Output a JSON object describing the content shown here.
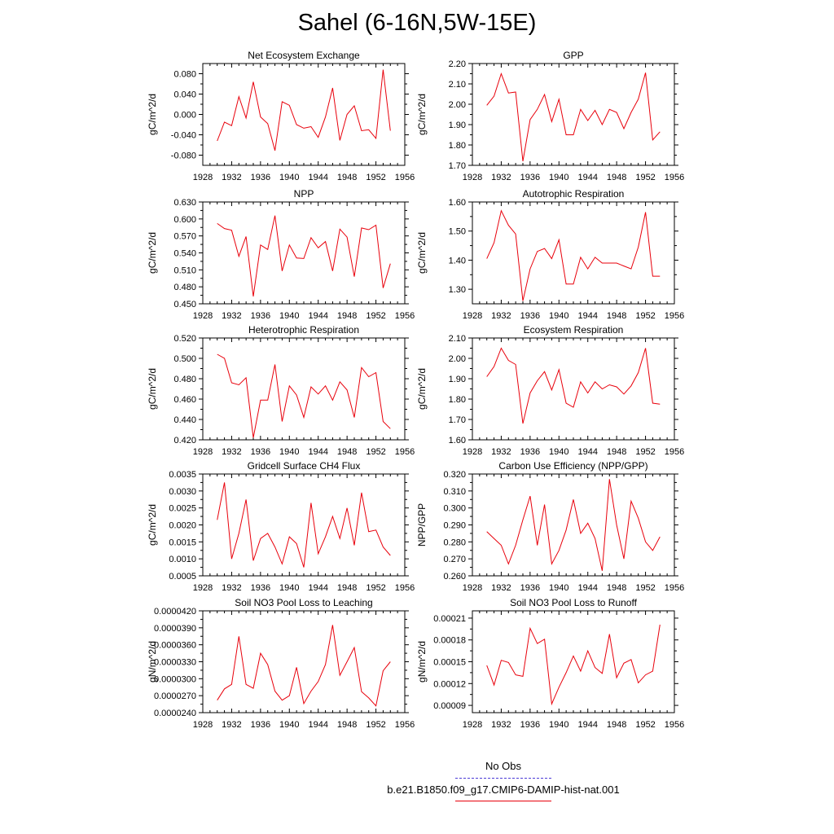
{
  "figure": {
    "title": "Sahel (6-16N,5W-15E)",
    "line_color": "#e8000b",
    "legend": [
      {
        "label": "No Obs",
        "color": "#4b3bd6",
        "style": "dashed"
      },
      {
        "label": "b.e21.B1850.f09_g17.CMIP6-DAMIP-hist-nat.001",
        "color": "#e8000b",
        "style": "solid"
      }
    ]
  },
  "chart_data": [
    {
      "type": "line",
      "title": "Net Ecosystem Exchange",
      "ylabel": "gC/m^2/d",
      "xlim": [
        1928,
        1956
      ],
      "xticks": [
        "1928",
        "1932",
        "1936",
        "1940",
        "1944",
        "1948",
        "1952",
        "1956"
      ],
      "ylim": [
        -0.1,
        0.1
      ],
      "yticks": [
        "-0.080",
        "-0.040",
        "0.000",
        "0.040",
        "0.080"
      ],
      "ytick_values": [
        -0.08,
        -0.04,
        0.0,
        0.04,
        0.08
      ],
      "x": [
        1930,
        1931,
        1932,
        1933,
        1934,
        1935,
        1936,
        1937,
        1938,
        1939,
        1940,
        1941,
        1942,
        1943,
        1944,
        1945,
        1946,
        1947,
        1948,
        1949,
        1950,
        1951,
        1952,
        1953,
        1954
      ],
      "values": [
        -0.052,
        -0.015,
        -0.022,
        0.035,
        -0.007,
        0.064,
        -0.005,
        -0.018,
        -0.071,
        0.025,
        0.018,
        -0.02,
        -0.027,
        -0.024,
        -0.045,
        -0.005,
        0.052,
        -0.051,
        0.0,
        0.017,
        -0.032,
        -0.03,
        -0.047,
        0.088,
        -0.032
      ]
    },
    {
      "type": "line",
      "title": "GPP",
      "ylabel": "gC/m^2/d",
      "xlim": [
        1928,
        1956
      ],
      "xticks": [
        "1928",
        "1932",
        "1936",
        "1940",
        "1944",
        "1948",
        "1952",
        "1956"
      ],
      "ylim": [
        1.7,
        2.2
      ],
      "yticks": [
        "1.70",
        "1.80",
        "1.90",
        "2.00",
        "2.10",
        "2.20"
      ],
      "ytick_values": [
        1.7,
        1.8,
        1.9,
        2.0,
        2.1,
        2.2
      ],
      "x": [
        1930,
        1931,
        1932,
        1933,
        1934,
        1935,
        1936,
        1937,
        1938,
        1939,
        1940,
        1941,
        1942,
        1943,
        1944,
        1945,
        1946,
        1947,
        1948,
        1949,
        1950,
        1951,
        1952,
        1953,
        1954
      ],
      "values": [
        1.995,
        2.04,
        2.15,
        2.055,
        2.06,
        1.72,
        1.925,
        1.975,
        2.048,
        1.915,
        2.025,
        1.85,
        1.85,
        1.975,
        1.92,
        1.97,
        1.9,
        1.975,
        1.96,
        1.88,
        1.96,
        2.025,
        2.155,
        1.825,
        1.865
      ]
    },
    {
      "type": "line",
      "title": "NPP",
      "ylabel": "gC/m^2/d",
      "xlim": [
        1928,
        1956
      ],
      "xticks": [
        "1928",
        "1932",
        "1936",
        "1940",
        "1944",
        "1948",
        "1952",
        "1956"
      ],
      "ylim": [
        0.45,
        0.63
      ],
      "yticks": [
        "0.450",
        "0.480",
        "0.510",
        "0.540",
        "0.570",
        "0.600",
        "0.630"
      ],
      "ytick_values": [
        0.45,
        0.48,
        0.51,
        0.54,
        0.57,
        0.6,
        0.63
      ],
      "x": [
        1930,
        1931,
        1932,
        1933,
        1934,
        1935,
        1936,
        1937,
        1938,
        1939,
        1940,
        1941,
        1942,
        1943,
        1944,
        1945,
        1946,
        1947,
        1948,
        1949,
        1950,
        1951,
        1952,
        1953,
        1954
      ],
      "values": [
        0.592,
        0.583,
        0.58,
        0.534,
        0.569,
        0.463,
        0.554,
        0.546,
        0.606,
        0.508,
        0.554,
        0.531,
        0.53,
        0.567,
        0.549,
        0.56,
        0.508,
        0.582,
        0.568,
        0.498,
        0.584,
        0.581,
        0.589,
        0.478,
        0.521
      ]
    },
    {
      "type": "line",
      "title": "Autotrophic Respiration",
      "ylabel": "gC/m^2/d",
      "xlim": [
        1928,
        1956
      ],
      "xticks": [
        "1928",
        "1932",
        "1936",
        "1940",
        "1944",
        "1948",
        "1952",
        "1956"
      ],
      "ylim": [
        1.25,
        1.6
      ],
      "yticks": [
        "1.30",
        "1.40",
        "1.50",
        "1.60"
      ],
      "ytick_values": [
        1.3,
        1.4,
        1.5,
        1.6
      ],
      "x": [
        1930,
        1931,
        1932,
        1933,
        1934,
        1935,
        1936,
        1937,
        1938,
        1939,
        1940,
        1941,
        1942,
        1943,
        1944,
        1945,
        1946,
        1947,
        1948,
        1949,
        1950,
        1951,
        1952,
        1953,
        1954
      ],
      "values": [
        1.405,
        1.46,
        1.57,
        1.52,
        1.49,
        1.26,
        1.37,
        1.43,
        1.44,
        1.405,
        1.47,
        1.318,
        1.318,
        1.41,
        1.37,
        1.41,
        1.39,
        1.39,
        1.39,
        1.38,
        1.37,
        1.445,
        1.565,
        1.345,
        1.345
      ]
    },
    {
      "type": "line",
      "title": "Heterotrophic Respiration",
      "ylabel": "gC/m^2/d",
      "xlim": [
        1928,
        1956
      ],
      "xticks": [
        "1928",
        "1932",
        "1936",
        "1940",
        "1944",
        "1948",
        "1952",
        "1956"
      ],
      "ylim": [
        0.42,
        0.52
      ],
      "yticks": [
        "0.420",
        "0.440",
        "0.460",
        "0.480",
        "0.500",
        "0.520"
      ],
      "ytick_values": [
        0.42,
        0.44,
        0.46,
        0.48,
        0.5,
        0.52
      ],
      "x": [
        1930,
        1931,
        1932,
        1933,
        1934,
        1935,
        1936,
        1937,
        1938,
        1939,
        1940,
        1941,
        1942,
        1943,
        1944,
        1945,
        1946,
        1947,
        1948,
        1949,
        1950,
        1951,
        1952,
        1953,
        1954
      ],
      "values": [
        0.504,
        0.5,
        0.476,
        0.474,
        0.481,
        0.422,
        0.459,
        0.459,
        0.494,
        0.438,
        0.473,
        0.464,
        0.442,
        0.472,
        0.465,
        0.473,
        0.459,
        0.477,
        0.469,
        0.442,
        0.491,
        0.482,
        0.486,
        0.438,
        0.431
      ]
    },
    {
      "type": "line",
      "title": "Ecosystem Respiration",
      "ylabel": "gC/m^2/d",
      "xlim": [
        1928,
        1956
      ],
      "xticks": [
        "1928",
        "1932",
        "1936",
        "1940",
        "1944",
        "1948",
        "1952",
        "1956"
      ],
      "ylim": [
        1.6,
        2.1
      ],
      "yticks": [
        "1.60",
        "1.70",
        "1.80",
        "1.90",
        "2.00",
        "2.10"
      ],
      "ytick_values": [
        1.6,
        1.7,
        1.8,
        1.9,
        2.0,
        2.1
      ],
      "x": [
        1930,
        1931,
        1932,
        1933,
        1934,
        1935,
        1936,
        1937,
        1938,
        1939,
        1940,
        1941,
        1942,
        1943,
        1944,
        1945,
        1946,
        1947,
        1948,
        1949,
        1950,
        1951,
        1952,
        1953,
        1954
      ],
      "values": [
        1.91,
        1.96,
        2.05,
        1.99,
        1.97,
        1.68,
        1.83,
        1.89,
        1.935,
        1.845,
        1.945,
        1.78,
        1.76,
        1.885,
        1.83,
        1.885,
        1.85,
        1.87,
        1.86,
        1.825,
        1.865,
        1.93,
        2.05,
        1.78,
        1.775
      ]
    },
    {
      "type": "line",
      "title": "Gridcell Surface CH4 Flux",
      "ylabel": "gC/m^2/d",
      "xlim": [
        1928,
        1956
      ],
      "xticks": [
        "1928",
        "1932",
        "1936",
        "1940",
        "1944",
        "1948",
        "1952",
        "1956"
      ],
      "ylim": [
        0.0005,
        0.0035
      ],
      "yticks": [
        "0.0005",
        "0.0010",
        "0.0015",
        "0.0020",
        "0.0025",
        "0.0030",
        "0.0035"
      ],
      "ytick_values": [
        0.0005,
        0.001,
        0.0015,
        0.002,
        0.0025,
        0.003,
        0.0035
      ],
      "x": [
        1930,
        1931,
        1932,
        1933,
        1934,
        1935,
        1936,
        1937,
        1938,
        1939,
        1940,
        1941,
        1942,
        1943,
        1944,
        1945,
        1946,
        1947,
        1948,
        1949,
        1950,
        1951,
        1952,
        1953,
        1954
      ],
      "values": [
        0.00215,
        0.00325,
        0.001,
        0.00175,
        0.00275,
        0.00095,
        0.0016,
        0.00175,
        0.00135,
        0.00085,
        0.00165,
        0.00145,
        0.00075,
        0.00265,
        0.00115,
        0.00165,
        0.00225,
        0.0016,
        0.0025,
        0.0014,
        0.00295,
        0.0018,
        0.00185,
        0.00135,
        0.0011
      ]
    },
    {
      "type": "line",
      "title": "Carbon Use Efficiency (NPP/GPP)",
      "ylabel": "NPP/GPP",
      "xlim": [
        1928,
        1956
      ],
      "xticks": [
        "1928",
        "1932",
        "1936",
        "1940",
        "1944",
        "1948",
        "1952",
        "1956"
      ],
      "ylim": [
        0.26,
        0.32
      ],
      "yticks": [
        "0.260",
        "0.270",
        "0.280",
        "0.290",
        "0.300",
        "0.310",
        "0.320"
      ],
      "ytick_values": [
        0.26,
        0.27,
        0.28,
        0.29,
        0.3,
        0.31,
        0.32
      ],
      "x": [
        1930,
        1931,
        1932,
        1933,
        1934,
        1935,
        1936,
        1937,
        1938,
        1939,
        1940,
        1941,
        1942,
        1943,
        1944,
        1945,
        1946,
        1947,
        1948,
        1949,
        1950,
        1951,
        1952,
        1953,
        1954
      ],
      "values": [
        0.286,
        0.282,
        0.278,
        0.267,
        0.278,
        0.293,
        0.307,
        0.278,
        0.302,
        0.267,
        0.275,
        0.287,
        0.305,
        0.285,
        0.291,
        0.282,
        0.263,
        0.317,
        0.29,
        0.27,
        0.304,
        0.294,
        0.28,
        0.275,
        0.283
      ]
    },
    {
      "type": "line",
      "title": "Soil NO3 Pool Loss to Leaching",
      "ylabel": "gN/m^2/d",
      "xlim": [
        1928,
        1956
      ],
      "xticks": [
        "1928",
        "1932",
        "1936",
        "1940",
        "1944",
        "1948",
        "1952",
        "1956"
      ],
      "ylim": [
        2.4e-05,
        4.2e-05
      ],
      "yticks": [
        "0.0000240",
        "0.0000270",
        "0.0000300",
        "0.0000330",
        "0.0000360",
        "0.0000390",
        "0.0000420"
      ],
      "ytick_values": [
        2.4e-05,
        2.7e-05,
        3e-05,
        3.3e-05,
        3.6e-05,
        3.9e-05,
        4.2e-05
      ],
      "x": [
        1930,
        1931,
        1932,
        1933,
        1934,
        1935,
        1936,
        1937,
        1938,
        1939,
        1940,
        1941,
        1942,
        1943,
        1944,
        1945,
        1946,
        1947,
        1948,
        1949,
        1950,
        1951,
        1952,
        1953,
        1954
      ],
      "values": [
        2.62e-05,
        2.82e-05,
        2.9e-05,
        3.75e-05,
        2.9e-05,
        2.83e-05,
        3.45e-05,
        3.25e-05,
        2.78e-05,
        2.62e-05,
        2.7e-05,
        3.2e-05,
        2.56e-05,
        2.78e-05,
        2.95e-05,
        3.25e-05,
        3.95e-05,
        3.06e-05,
        3.3e-05,
        3.55e-05,
        2.77e-05,
        2.66e-05,
        2.52e-05,
        3.14e-05,
        3.3e-05
      ]
    },
    {
      "type": "line",
      "title": "Soil NO3 Pool Loss to Runoff",
      "ylabel": "gN/m^2/d",
      "xlim": [
        1928,
        1956
      ],
      "xticks": [
        "1928",
        "1932",
        "1936",
        "1940",
        "1944",
        "1948",
        "1952",
        "1956"
      ],
      "ylim": [
        8e-05,
        0.00022
      ],
      "yticks": [
        "0.00009",
        "0.00012",
        "0.00015",
        "0.00018",
        "0.00021"
      ],
      "ytick_values": [
        9e-05,
        0.00012,
        0.00015,
        0.00018,
        0.00021
      ],
      "x": [
        1930,
        1931,
        1932,
        1933,
        1934,
        1935,
        1936,
        1937,
        1938,
        1939,
        1940,
        1941,
        1942,
        1943,
        1944,
        1945,
        1946,
        1947,
        1948,
        1949,
        1950,
        1951,
        1952,
        1953,
        1954
      ],
      "values": [
        0.000145,
        0.000118,
        0.000152,
        0.000149,
        0.000132,
        0.00013,
        0.000196,
        0.000175,
        0.000181,
        9.2e-05,
        0.000115,
        0.000135,
        0.000158,
        0.000137,
        0.000165,
        0.000142,
        0.000134,
        0.000188,
        0.000128,
        0.000148,
        0.000153,
        0.000121,
        0.000132,
        0.000137,
        0.000201
      ]
    }
  ]
}
